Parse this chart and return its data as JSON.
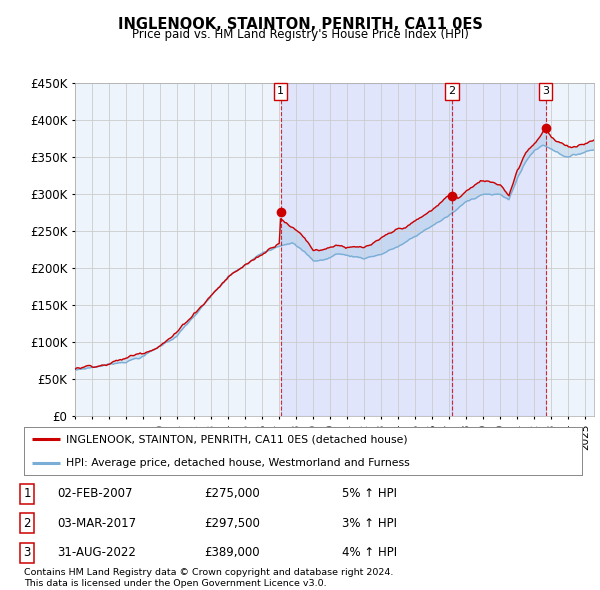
{
  "title": "INGLENOOK, STAINTON, PENRITH, CA11 0ES",
  "subtitle": "Price paid vs. HM Land Registry's House Price Index (HPI)",
  "ylabel_ticks": [
    "£0",
    "£50K",
    "£100K",
    "£150K",
    "£200K",
    "£250K",
    "£300K",
    "£350K",
    "£400K",
    "£450K"
  ],
  "ytick_values": [
    0,
    50000,
    100000,
    150000,
    200000,
    250000,
    300000,
    350000,
    400000,
    450000
  ],
  "ylim": [
    0,
    450000
  ],
  "xlim_start": 1995.0,
  "xlim_end": 2025.5,
  "sale_years": [
    2007.085,
    2017.163,
    2022.664
  ],
  "sale_prices": [
    275000,
    297500,
    389000
  ],
  "sale_labels": [
    "1",
    "2",
    "3"
  ],
  "red_color": "#cc0000",
  "blue_color": "#7aaed6",
  "fill_color": "#ddeeff",
  "vline_color": "#cc0000",
  "grid_color": "#cccccc",
  "chart_bg": "#eef4fc",
  "background_color": "#ffffff",
  "legend_line1": "INGLENOOK, STAINTON, PENRITH, CA11 0ES (detached house)",
  "legend_line2": "HPI: Average price, detached house, Westmorland and Furness",
  "footer1": "Contains HM Land Registry data © Crown copyright and database right 2024.",
  "footer2": "This data is licensed under the Open Government Licence v3.0.",
  "table_rows": [
    [
      "1",
      "02-FEB-2007",
      "£275,000",
      "5% ↑ HPI"
    ],
    [
      "2",
      "03-MAR-2017",
      "£297,500",
      "3% ↑ HPI"
    ],
    [
      "3",
      "31-AUG-2022",
      "£389,000",
      "4% ↑ HPI"
    ]
  ]
}
